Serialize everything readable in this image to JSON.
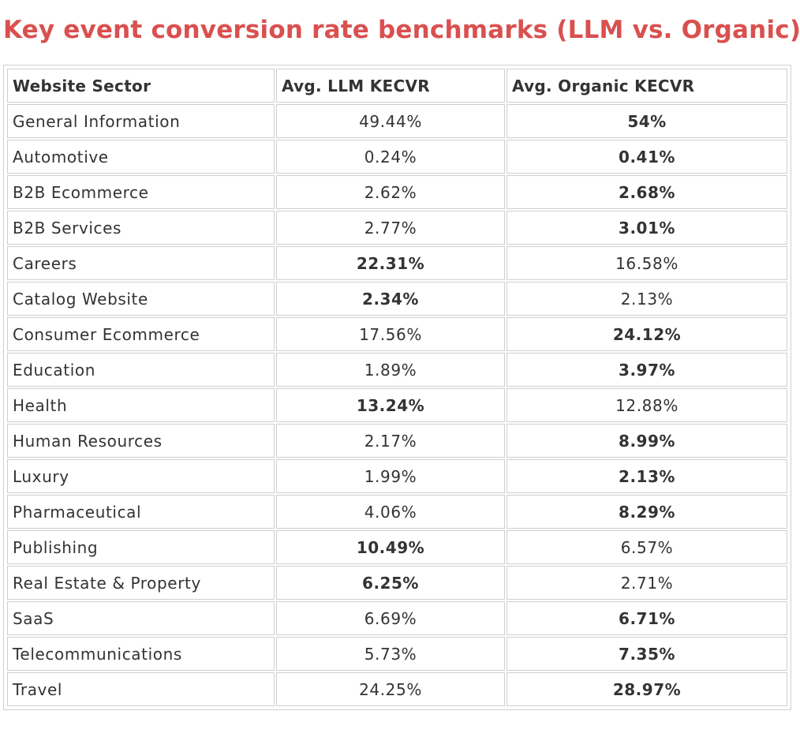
{
  "title": "Key event conversion rate benchmarks (LLM vs. Organic)",
  "colors": {
    "title": "#d9504f",
    "text": "#333333",
    "border": "#cfcfcf"
  },
  "table": {
    "headers": [
      "Website Sector",
      "Avg. LLM KECVR",
      "Avg. Organic KECVR"
    ],
    "rows": [
      {
        "sector": "General Information",
        "llm": "49.44%",
        "organic": "54%",
        "bold": "organic"
      },
      {
        "sector": "Automotive",
        "llm": "0.24%",
        "organic": "0.41%",
        "bold": "organic"
      },
      {
        "sector": "B2B Ecommerce",
        "llm": "2.62%",
        "organic": "2.68%",
        "bold": "organic"
      },
      {
        "sector": "B2B Services",
        "llm": "2.77%",
        "organic": "3.01%",
        "bold": "organic"
      },
      {
        "sector": "Careers",
        "llm": "22.31%",
        "organic": "16.58%",
        "bold": "llm"
      },
      {
        "sector": "Catalog Website",
        "llm": "2.34%",
        "organic": "2.13%",
        "bold": "llm"
      },
      {
        "sector": "Consumer Ecommerce",
        "llm": "17.56%",
        "organic": "24.12%",
        "bold": "organic"
      },
      {
        "sector": "Education",
        "llm": "1.89%",
        "organic": "3.97%",
        "bold": "organic"
      },
      {
        "sector": "Health",
        "llm": "13.24%",
        "organic": "12.88%",
        "bold": "llm"
      },
      {
        "sector": "Human Resources",
        "llm": "2.17%",
        "organic": "8.99%",
        "bold": "organic"
      },
      {
        "sector": "Luxury",
        "llm": "1.99%",
        "organic": "2.13%",
        "bold": "organic"
      },
      {
        "sector": "Pharmaceutical",
        "llm": "4.06%",
        "organic": "8.29%",
        "bold": "organic"
      },
      {
        "sector": "Publishing",
        "llm": "10.49%",
        "organic": "6.57%",
        "bold": "llm"
      },
      {
        "sector": "Real Estate & Property",
        "llm": "6.25%",
        "organic": "2.71%",
        "bold": "llm"
      },
      {
        "sector": "SaaS",
        "llm": "6.69%",
        "organic": "6.71%",
        "bold": "organic"
      },
      {
        "sector": "Telecommunications",
        "llm": "5.73%",
        "organic": "7.35%",
        "bold": "organic"
      },
      {
        "sector": "Travel",
        "llm": "24.25%",
        "organic": "28.97%",
        "bold": "organic"
      }
    ]
  }
}
